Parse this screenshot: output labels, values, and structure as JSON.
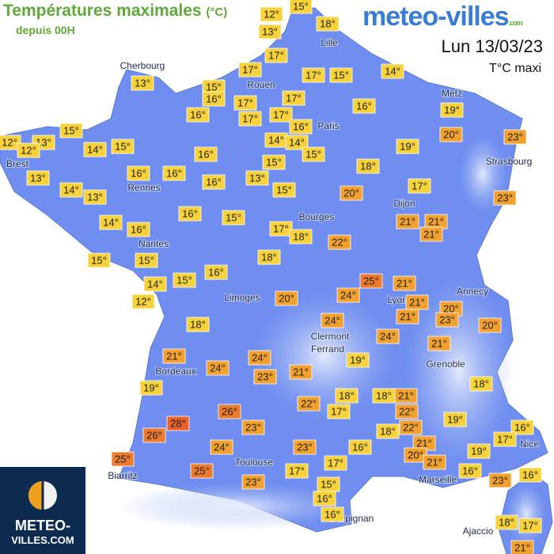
{
  "header": {
    "title": "Températures maximales",
    "unit": "(°C)",
    "subtitle": "depuis 00H",
    "brand": "meteo-villes",
    "brand_suffix": ".com",
    "date": "Lun 13/03/23",
    "caption": "T°C maxi"
  },
  "logo": {
    "line1": "METEO-",
    "line2": "VILLES.COM"
  },
  "cities": [
    "Cherbourg",
    "Lille",
    "Rouen",
    "Paris",
    "Metz",
    "Strasbourg",
    "Brest",
    "Rennes",
    "Dijon",
    "Bourges",
    "Nantes",
    "Limoges",
    "Annecy",
    "Lyon",
    "Clermont",
    "Ferrand",
    "Grenoble",
    "Bordeaux",
    "Nice",
    "Toulouse",
    "Marseille",
    "Biarritz",
    "Perpignan",
    "Ajaccio"
  ],
  "temperatures": [
    {
      "value": 12,
      "label": "12°"
    },
    {
      "value": 15,
      "label": "15°"
    },
    {
      "value": 13,
      "label": "13°"
    },
    {
      "value": 18,
      "label": "18°"
    },
    {
      "value": 17,
      "label": "17°"
    },
    {
      "value": 13,
      "label": "13°"
    },
    {
      "value": 15,
      "label": "15°"
    },
    {
      "value": 16,
      "label": "16°"
    },
    {
      "value": 17,
      "label": "17°"
    },
    {
      "value": 17,
      "label": "17°"
    },
    {
      "value": 15,
      "label": "15°"
    },
    {
      "value": 14,
      "label": "14°"
    },
    {
      "value": 17,
      "label": "17°"
    },
    {
      "value": 17,
      "label": "17°"
    },
    {
      "value": 16,
      "label": "16°"
    },
    {
      "value": 17,
      "label": "17°"
    },
    {
      "value": 17,
      "label": "17°"
    },
    {
      "value": 16,
      "label": "16°"
    },
    {
      "value": 16,
      "label": "16°"
    },
    {
      "value": 19,
      "label": "19°"
    },
    {
      "value": 15,
      "label": "15°"
    },
    {
      "value": 12,
      "label": "12°"
    },
    {
      "value": 13,
      "label": "13°"
    },
    {
      "value": 12,
      "label": "12°"
    },
    {
      "value": 14,
      "label": "14°"
    },
    {
      "value": 15,
      "label": "15°"
    },
    {
      "value": 14,
      "label": "14°"
    },
    {
      "value": 14,
      "label": "14°"
    },
    {
      "value": 15,
      "label": "15°"
    },
    {
      "value": 19,
      "label": "19°"
    },
    {
      "value": 20,
      "label": "20°"
    },
    {
      "value": 23,
      "label": "23°"
    },
    {
      "value": 16,
      "label": "16°"
    },
    {
      "value": 16,
      "label": "16°"
    },
    {
      "value": 16,
      "label": "16°"
    },
    {
      "value": 13,
      "label": "13°"
    },
    {
      "value": 16,
      "label": "16°"
    },
    {
      "value": 13,
      "label": "13°"
    },
    {
      "value": 15,
      "label": "15°"
    },
    {
      "value": 18,
      "label": "18°"
    },
    {
      "value": 14,
      "label": "14°"
    },
    {
      "value": 13,
      "label": "13°"
    },
    {
      "value": 15,
      "label": "15°"
    },
    {
      "value": 20,
      "label": "20°"
    },
    {
      "value": 17,
      "label": "17°"
    },
    {
      "value": 23,
      "label": "23°"
    },
    {
      "value": 16,
      "label": "16°"
    },
    {
      "value": 15,
      "label": "15°"
    },
    {
      "value": 14,
      "label": "14°"
    },
    {
      "value": 16,
      "label": "16°"
    },
    {
      "value": 17,
      "label": "17°"
    },
    {
      "value": 18,
      "label": "18°"
    },
    {
      "value": 21,
      "label": "21°"
    },
    {
      "value": 21,
      "label": "21°"
    },
    {
      "value": 21,
      "label": "21°"
    },
    {
      "value": 22,
      "label": "22°"
    },
    {
      "value": 15,
      "label": "15°"
    },
    {
      "value": 15,
      "label": "15°"
    },
    {
      "value": 18,
      "label": "18°"
    },
    {
      "value": 14,
      "label": "14°"
    },
    {
      "value": 15,
      "label": "15°"
    },
    {
      "value": 16,
      "label": "16°"
    },
    {
      "value": 25,
      "label": "25°"
    },
    {
      "value": 21,
      "label": "21°"
    },
    {
      "value": 12,
      "label": "12°"
    },
    {
      "value": 20,
      "label": "20°"
    },
    {
      "value": 24,
      "label": "24°"
    },
    {
      "value": 21,
      "label": "21°"
    },
    {
      "value": 20,
      "label": "20°"
    },
    {
      "value": 21,
      "label": "21°"
    },
    {
      "value": 23,
      "label": "23°"
    },
    {
      "value": 20,
      "label": "20°"
    },
    {
      "value": 18,
      "label": "18°"
    },
    {
      "value": 24,
      "label": "24°"
    },
    {
      "value": 24,
      "label": "24°"
    },
    {
      "value": 21,
      "label": "21°"
    },
    {
      "value": 21,
      "label": "21°"
    },
    {
      "value": 24,
      "label": "24°"
    },
    {
      "value": 24,
      "label": "24°"
    },
    {
      "value": 19,
      "label": "19°"
    },
    {
      "value": 23,
      "label": "23°"
    },
    {
      "value": 21,
      "label": "21°"
    },
    {
      "value": 18,
      "label": "18°"
    },
    {
      "value": 19,
      "label": "19°"
    },
    {
      "value": 18,
      "label": "18°"
    },
    {
      "value": 18,
      "label": "18°"
    },
    {
      "value": 21,
      "label": "21°"
    },
    {
      "value": 28,
      "label": "28°"
    },
    {
      "value": 26,
      "label": "26°"
    },
    {
      "value": 22,
      "label": "22°"
    },
    {
      "value": 17,
      "label": "17°"
    },
    {
      "value": 22,
      "label": "22°"
    },
    {
      "value": 19,
      "label": "19°"
    },
    {
      "value": 16,
      "label": "16°"
    },
    {
      "value": 26,
      "label": "26°"
    },
    {
      "value": 23,
      "label": "23°"
    },
    {
      "value": 18,
      "label": "18°"
    },
    {
      "value": 22,
      "label": "22°"
    },
    {
      "value": 17,
      "label": "17°"
    },
    {
      "value": 24,
      "label": "24°"
    },
    {
      "value": 16,
      "label": "16°"
    },
    {
      "value": 23,
      "label": "23°"
    },
    {
      "value": 21,
      "label": "21°"
    },
    {
      "value": 20,
      "label": "20°"
    },
    {
      "value": 19,
      "label": "19°"
    },
    {
      "value": 25,
      "label": "25°"
    },
    {
      "value": 17,
      "label": "17°"
    },
    {
      "value": 21,
      "label": "21°"
    },
    {
      "value": 16,
      "label": "16°"
    },
    {
      "value": 25,
      "label": "25°"
    },
    {
      "value": 17,
      "label": "17°"
    },
    {
      "value": 23,
      "label": "23°"
    },
    {
      "value": 16,
      "label": "16°"
    },
    {
      "value": 23,
      "label": "23°"
    },
    {
      "value": 15,
      "label": "15°"
    },
    {
      "value": 16,
      "label": "16°"
    },
    {
      "value": 16,
      "label": "16°"
    },
    {
      "value": 18,
      "label": "18°"
    },
    {
      "value": 17,
      "label": "17°"
    },
    {
      "value": 21,
      "label": "21°"
    }
  ]
}
